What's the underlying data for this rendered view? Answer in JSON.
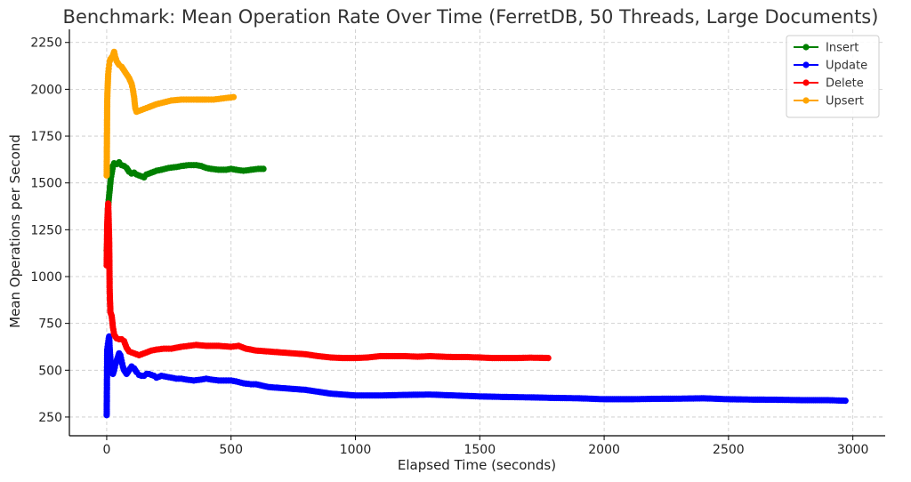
{
  "chart_data": {
    "type": "line",
    "title": "Benchmark: Mean Operation Rate Over Time (FerretDB, 50 Threads, Large Documents)",
    "xlabel": "Elapsed Time (seconds)",
    "ylabel": "Mean Operations per Second",
    "xlim": [
      -150,
      3130
    ],
    "ylim": [
      150,
      2320
    ],
    "xticks": [
      0,
      500,
      1000,
      1500,
      2000,
      2500,
      3000
    ],
    "yticks": [
      250,
      500,
      750,
      1000,
      1250,
      1500,
      1750,
      2000,
      2250
    ],
    "grid": true,
    "legend_position": "top-right",
    "series": [
      {
        "name": "Insert",
        "color": "#008000",
        "points": [
          [
            0,
            1140
          ],
          [
            2,
            1170
          ],
          [
            5,
            1360
          ],
          [
            8,
            1410
          ],
          [
            12,
            1460
          ],
          [
            16,
            1520
          ],
          [
            20,
            1550
          ],
          [
            25,
            1590
          ],
          [
            30,
            1605
          ],
          [
            40,
            1600
          ],
          [
            50,
            1610
          ],
          [
            60,
            1595
          ],
          [
            70,
            1590
          ],
          [
            80,
            1580
          ],
          [
            90,
            1560
          ],
          [
            100,
            1550
          ],
          [
            110,
            1555
          ],
          [
            120,
            1545
          ],
          [
            130,
            1540
          ],
          [
            140,
            1535
          ],
          [
            150,
            1530
          ],
          [
            160,
            1545
          ],
          [
            180,
            1555
          ],
          [
            200,
            1565
          ],
          [
            220,
            1570
          ],
          [
            250,
            1580
          ],
          [
            280,
            1585
          ],
          [
            300,
            1590
          ],
          [
            330,
            1595
          ],
          [
            360,
            1595
          ],
          [
            380,
            1590
          ],
          [
            400,
            1580
          ],
          [
            420,
            1575
          ],
          [
            450,
            1570
          ],
          [
            480,
            1570
          ],
          [
            500,
            1575
          ],
          [
            520,
            1570
          ],
          [
            550,
            1565
          ],
          [
            580,
            1570
          ],
          [
            610,
            1575
          ],
          [
            630,
            1575
          ]
        ]
      },
      {
        "name": "Update",
        "color": "#0000ff",
        "points": [
          [
            0,
            260
          ],
          [
            2,
            610
          ],
          [
            5,
            640
          ],
          [
            8,
            670
          ],
          [
            10,
            680
          ],
          [
            12,
            620
          ],
          [
            15,
            560
          ],
          [
            20,
            500
          ],
          [
            25,
            480
          ],
          [
            30,
            500
          ],
          [
            35,
            530
          ],
          [
            40,
            550
          ],
          [
            45,
            570
          ],
          [
            50,
            590
          ],
          [
            55,
            580
          ],
          [
            60,
            550
          ],
          [
            65,
            520
          ],
          [
            70,
            500
          ],
          [
            75,
            490
          ],
          [
            80,
            480
          ],
          [
            90,
            500
          ],
          [
            100,
            520
          ],
          [
            110,
            510
          ],
          [
            120,
            490
          ],
          [
            130,
            475
          ],
          [
            140,
            470
          ],
          [
            150,
            470
          ],
          [
            160,
            480
          ],
          [
            170,
            480
          ],
          [
            180,
            475
          ],
          [
            190,
            470
          ],
          [
            200,
            460
          ],
          [
            220,
            470
          ],
          [
            240,
            465
          ],
          [
            260,
            460
          ],
          [
            280,
            455
          ],
          [
            300,
            455
          ],
          [
            320,
            450
          ],
          [
            350,
            445
          ],
          [
            380,
            450
          ],
          [
            400,
            455
          ],
          [
            420,
            450
          ],
          [
            450,
            445
          ],
          [
            480,
            445
          ],
          [
            500,
            445
          ],
          [
            520,
            440
          ],
          [
            550,
            430
          ],
          [
            580,
            425
          ],
          [
            600,
            425
          ],
          [
            650,
            410
          ],
          [
            700,
            405
          ],
          [
            750,
            400
          ],
          [
            800,
            395
          ],
          [
            850,
            385
          ],
          [
            900,
            375
          ],
          [
            950,
            370
          ],
          [
            1000,
            365
          ],
          [
            1100,
            365
          ],
          [
            1200,
            368
          ],
          [
            1300,
            370
          ],
          [
            1400,
            365
          ],
          [
            1500,
            360
          ],
          [
            1600,
            357
          ],
          [
            1700,
            355
          ],
          [
            1800,
            352
          ],
          [
            1900,
            350
          ],
          [
            2000,
            345
          ],
          [
            2100,
            345
          ],
          [
            2200,
            347
          ],
          [
            2300,
            348
          ],
          [
            2400,
            350
          ],
          [
            2500,
            345
          ],
          [
            2600,
            343
          ],
          [
            2700,
            342
          ],
          [
            2800,
            340
          ],
          [
            2900,
            340
          ],
          [
            2970,
            337
          ]
        ]
      },
      {
        "name": "Delete",
        "color": "#ff0000",
        "points": [
          [
            0,
            1060
          ],
          [
            2,
            1280
          ],
          [
            4,
            1340
          ],
          [
            6,
            1390
          ],
          [
            8,
            1300
          ],
          [
            10,
            1190
          ],
          [
            12,
            920
          ],
          [
            15,
            810
          ],
          [
            20,
            790
          ],
          [
            25,
            730
          ],
          [
            30,
            690
          ],
          [
            35,
            680
          ],
          [
            40,
            670
          ],
          [
            50,
            665
          ],
          [
            60,
            665
          ],
          [
            70,
            655
          ],
          [
            80,
            620
          ],
          [
            90,
            600
          ],
          [
            100,
            595
          ],
          [
            110,
            590
          ],
          [
            120,
            585
          ],
          [
            130,
            580
          ],
          [
            140,
            585
          ],
          [
            160,
            595
          ],
          [
            180,
            605
          ],
          [
            200,
            610
          ],
          [
            230,
            615
          ],
          [
            260,
            615
          ],
          [
            300,
            625
          ],
          [
            330,
            630
          ],
          [
            360,
            635
          ],
          [
            400,
            630
          ],
          [
            450,
            630
          ],
          [
            500,
            625
          ],
          [
            530,
            630
          ],
          [
            560,
            615
          ],
          [
            600,
            605
          ],
          [
            650,
            600
          ],
          [
            700,
            595
          ],
          [
            750,
            590
          ],
          [
            800,
            585
          ],
          [
            850,
            575
          ],
          [
            900,
            568
          ],
          [
            950,
            565
          ],
          [
            1000,
            565
          ],
          [
            1050,
            568
          ],
          [
            1100,
            575
          ],
          [
            1150,
            575
          ],
          [
            1200,
            575
          ],
          [
            1250,
            572
          ],
          [
            1300,
            575
          ],
          [
            1350,
            572
          ],
          [
            1400,
            570
          ],
          [
            1450,
            570
          ],
          [
            1500,
            568
          ],
          [
            1550,
            565
          ],
          [
            1600,
            565
          ],
          [
            1650,
            565
          ],
          [
            1700,
            567
          ],
          [
            1750,
            566
          ],
          [
            1775,
            565
          ]
        ]
      },
      {
        "name": "Upsert",
        "color": "#ffa500",
        "points": [
          [
            0,
            1540
          ],
          [
            2,
            1940
          ],
          [
            4,
            2020
          ],
          [
            6,
            2080
          ],
          [
            8,
            2110
          ],
          [
            10,
            2130
          ],
          [
            12,
            2150
          ],
          [
            15,
            2160
          ],
          [
            20,
            2170
          ],
          [
            25,
            2180
          ],
          [
            30,
            2200
          ],
          [
            35,
            2170
          ],
          [
            40,
            2150
          ],
          [
            50,
            2130
          ],
          [
            60,
            2120
          ],
          [
            70,
            2100
          ],
          [
            80,
            2080
          ],
          [
            90,
            2060
          ],
          [
            100,
            2030
          ],
          [
            105,
            2000
          ],
          [
            110,
            1960
          ],
          [
            115,
            1900
          ],
          [
            120,
            1880
          ],
          [
            130,
            1885
          ],
          [
            150,
            1895
          ],
          [
            170,
            1905
          ],
          [
            200,
            1920
          ],
          [
            230,
            1930
          ],
          [
            260,
            1940
          ],
          [
            300,
            1945
          ],
          [
            330,
            1945
          ],
          [
            360,
            1945
          ],
          [
            400,
            1945
          ],
          [
            430,
            1945
          ],
          [
            460,
            1950
          ],
          [
            490,
            1955
          ],
          [
            510,
            1958
          ]
        ]
      }
    ]
  }
}
